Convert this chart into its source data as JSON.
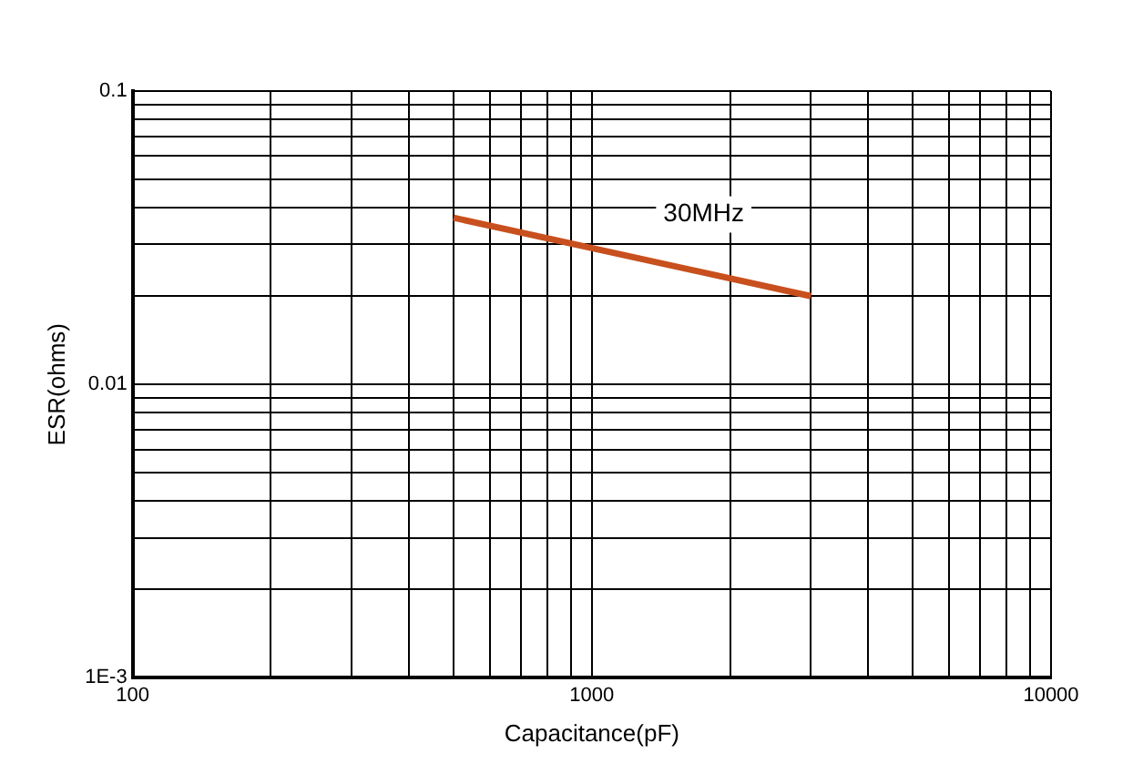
{
  "chart_data": {
    "type": "line",
    "xlabel": "Capacitance(pF)",
    "ylabel": "ESR(ohms)",
    "log": "xy",
    "grid": true,
    "legend": false,
    "marker": "none",
    "line_style": "solid",
    "xlim": [
      100,
      10000
    ],
    "ylim": [
      0.001,
      0.1
    ],
    "xticks": [
      100,
      {
        "value": 200,
        "label": null
      },
      {
        "value": 300,
        "label": null
      },
      {
        "value": 400,
        "label": null
      },
      {
        "value": 500,
        "label": null
      },
      {
        "value": 600,
        "label": null
      },
      {
        "value": 700,
        "label": null
      },
      {
        "value": 800,
        "label": null
      },
      {
        "value": 900,
        "label": null
      },
      1000,
      {
        "value": 2000,
        "label": null
      },
      {
        "value": 3000,
        "label": null
      },
      {
        "value": 4000,
        "label": null
      },
      {
        "value": 5000,
        "label": null
      },
      {
        "value": 6000,
        "label": null
      },
      {
        "value": 7000,
        "label": null
      },
      {
        "value": 8000,
        "label": null
      },
      {
        "value": 9000,
        "label": null
      },
      10000
    ],
    "yticks": [
      {
        "value": 0.001,
        "label": "1E-3"
      },
      {
        "value": 0.002,
        "label": null
      },
      {
        "value": 0.003,
        "label": null
      },
      {
        "value": 0.004,
        "label": null
      },
      {
        "value": 0.005,
        "label": null
      },
      {
        "value": 0.006,
        "label": null
      },
      {
        "value": 0.007,
        "label": null
      },
      {
        "value": 0.008,
        "label": null
      },
      {
        "value": 0.009,
        "label": null
      },
      0.01,
      {
        "value": 0.02,
        "label": null
      },
      {
        "value": 0.03,
        "label": null
      },
      {
        "value": 0.04,
        "label": null
      },
      {
        "value": 0.05,
        "label": null
      },
      {
        "value": 0.06,
        "label": null
      },
      {
        "value": 0.07,
        "label": null
      },
      {
        "value": 0.08,
        "label": null
      },
      {
        "value": 0.09,
        "label": null
      },
      0.1
    ],
    "series": [
      {
        "name": "30MHz",
        "color": "#c8501e",
        "x": [
          500,
          3000
        ],
        "values": [
          0.037,
          0.02
        ]
      }
    ]
  }
}
